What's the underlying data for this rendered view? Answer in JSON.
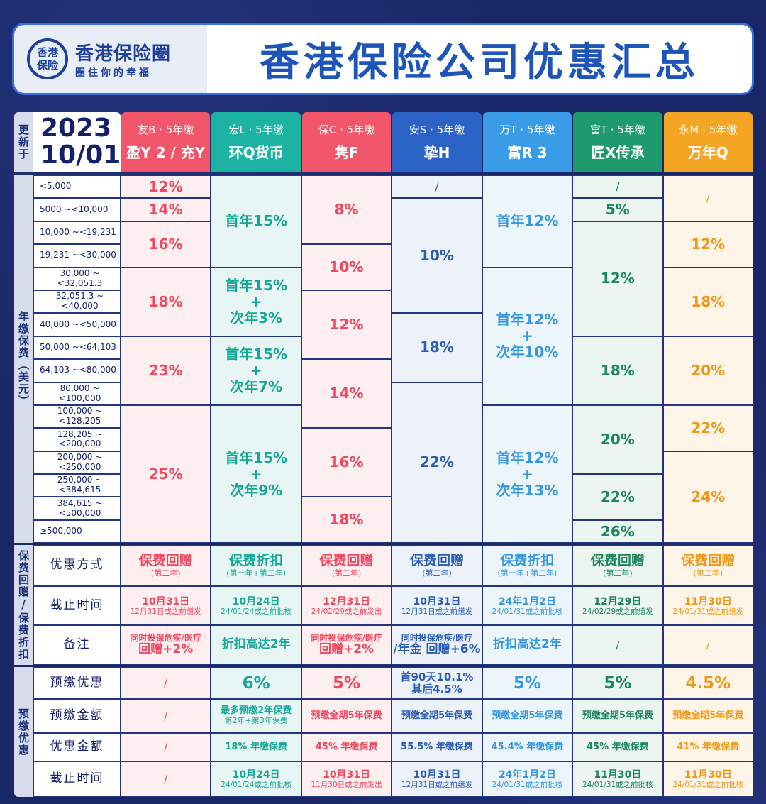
{
  "logo": {
    "seal": "香港保险",
    "name": "香港保险圈",
    "slogan": "圈住你的幸福"
  },
  "title": "香港保险公司优惠汇总",
  "updated": {
    "label": "更新于",
    "year": "2023",
    "date": "10/01"
  },
  "sections": {
    "premium": "年缴保费（美元）",
    "rebate": "保费回赠/保费折扣",
    "prepay": "预缴优惠"
  },
  "ranges": [
    "<5,000",
    "5000 ~<10,000",
    "10,000 ~<19,231",
    "19,231 ~<30,000",
    "30,000 ~<32,051.3",
    "32,051.3 ~<40,000",
    "40,000 ~<50,000",
    "50,000 ~<64,103",
    "64,103 ~<80,000",
    "80,000 ~<100,000",
    "100,000 ~<128,205",
    "128,205 ~<200,000",
    "200,000 ~<250,000",
    "250,000 ~<384,615",
    "384,615 ~<500,000",
    "≥500,000"
  ],
  "rebate_labels": [
    "优惠方式",
    "截止时间",
    "备注"
  ],
  "prepay_labels": [
    "预缴优惠",
    "预缴金额",
    "优惠金额",
    "截止时间"
  ],
  "columns": [
    {
      "company": "友B · 5年缴",
      "product": "盈Y 2 / 充Y",
      "head": "#f2566a",
      "bg": "#fdeef0",
      "fg": "#ef4760",
      "premium": [
        {
          "r": [
            0,
            0
          ],
          "t": "12%"
        },
        {
          "r": [
            1,
            1
          ],
          "t": "14%"
        },
        {
          "r": [
            2,
            3
          ],
          "t": "16%"
        },
        {
          "r": [
            4,
            6
          ],
          "t": "18%"
        },
        {
          "r": [
            7,
            9
          ],
          "t": "23%"
        },
        {
          "r": [
            10,
            15
          ],
          "t": "25%"
        }
      ],
      "method": "保费回赠",
      "method_note": "(第二年)",
      "deadline": "10月31日",
      "deadline_note": "12月31日或之前缮发",
      "remark": "同时投保危疾/医疗",
      "remark2": "回赠+2%",
      "prepay": "/",
      "prepay_amt": "/",
      "prepay_amt2": "",
      "discount": "/",
      "prepay_deadline": "/",
      "prepay_deadline_note": ""
    },
    {
      "company": "宏L · 5年缴",
      "product": "环Q货币",
      "head": "#1db3a3",
      "bg": "#e7f6f4",
      "fg": "#17a797",
      "premium": [
        {
          "r": [
            0,
            3
          ],
          "t": "首年15%"
        },
        {
          "r": [
            4,
            6
          ],
          "t": "首年15%\n+\n次年3%"
        },
        {
          "r": [
            7,
            9
          ],
          "t": "首年15%\n+\n次年7%"
        },
        {
          "r": [
            10,
            15
          ],
          "t": "首年15%\n+\n次年9%"
        }
      ],
      "method": "保费折扣",
      "method_note": "(第一年+第二年)",
      "deadline": "10月24日",
      "deadline_note": "24/01/24或之前批核",
      "remark": "",
      "remark2": "折扣高达2年",
      "prepay": "6%",
      "prepay_amt": "最多预缴2年保费",
      "prepay_amt2": "第2年+第3年保费",
      "discount": "18% 年缴保费",
      "prepay_deadline": "10月24日",
      "prepay_deadline_note": "24/01/24或之前批核"
    },
    {
      "company": "保C · 5年缴",
      "product": "隽F",
      "head": "#f2566a",
      "bg": "#fdeef0",
      "fg": "#ef4760",
      "premium": [
        {
          "r": [
            0,
            2
          ],
          "t": "8%"
        },
        {
          "r": [
            3,
            4
          ],
          "t": "10%"
        },
        {
          "r": [
            5,
            7
          ],
          "t": "12%"
        },
        {
          "r": [
            8,
            10
          ],
          "t": "14%"
        },
        {
          "r": [
            11,
            13
          ],
          "t": "16%"
        },
        {
          "r": [
            14,
            15
          ],
          "t": "18%"
        }
      ],
      "method": "保费回赠",
      "method_note": "(第二年)",
      "deadline": "12月31日",
      "deadline_note": "24/02/29或之前发出",
      "remark": "同时投保危疾/医疗",
      "remark2": "回赠+2%",
      "prepay": "5%",
      "prepay_amt": "预缴全期5年保费",
      "prepay_amt2": "",
      "discount": "45% 年缴保费",
      "prepay_deadline": "10月31日",
      "prepay_deadline_note": "11月30日或之前发出"
    },
    {
      "company": "安S · 5年缴",
      "product": "挚H",
      "head": "#2b62c6",
      "bg": "#edf2fa",
      "fg": "#2a5db5",
      "premium": [
        {
          "r": [
            0,
            0
          ],
          "t": "/"
        },
        {
          "r": [
            1,
            5
          ],
          "t": "10%"
        },
        {
          "r": [
            6,
            8
          ],
          "t": "18%"
        },
        {
          "r": [
            9,
            15
          ],
          "t": "22%"
        }
      ],
      "method": "保费回赠",
      "method_note": "(第二年)",
      "deadline": "10月31日",
      "deadline_note": "12月31日或之前缮发",
      "remark": "同时投保危疾/医疗",
      "remark2": "/年金 回赠+6%",
      "prepay": "首90天10.1%\n其后4.5%",
      "prepay_amt": "预缴全期5年保费",
      "prepay_amt2": "",
      "discount": "55.5% 年缴保费",
      "prepay_deadline": "10月31日",
      "prepay_deadline_note": "12月31日或之前缮发"
    },
    {
      "company": "万T · 5年缴",
      "product": "富R 3",
      "head": "#3a9ce6",
      "bg": "#edf5fc",
      "fg": "#3597df",
      "premium": [
        {
          "r": [
            0,
            3
          ],
          "t": "首年12%"
        },
        {
          "r": [
            4,
            9
          ],
          "t": "首年12%\n+\n次年10%"
        },
        {
          "r": [
            10,
            15
          ],
          "t": "首年12%\n+\n次年13%"
        }
      ],
      "method": "保费折扣",
      "method_note": "(第一年+第二年)",
      "deadline": "24年1月2日",
      "deadline_note": "24/01/31或之前批核",
      "remark": "",
      "remark2": "折扣高达2年",
      "prepay": "5%",
      "prepay_amt": "预缴全期5年保费",
      "prepay_amt2": "",
      "discount": "45.4% 年缴保费",
      "prepay_deadline": "24年1月2日",
      "prepay_deadline_note": "24/01/31或之前批核"
    },
    {
      "company": "富T · 5年缴",
      "product": "匠X传承",
      "head": "#1f9a6c",
      "bg": "#ecf5f0",
      "fg": "#1c875c",
      "premium": [
        {
          "r": [
            0,
            0
          ],
          "t": "/"
        },
        {
          "r": [
            1,
            1
          ],
          "t": "5%"
        },
        {
          "r": [
            2,
            6
          ],
          "t": "12%"
        },
        {
          "r": [
            7,
            9
          ],
          "t": "18%"
        },
        {
          "r": [
            10,
            12
          ],
          "t": "20%"
        },
        {
          "r": [
            13,
            14
          ],
          "t": "22%"
        },
        {
          "r": [
            15,
            15
          ],
          "t": "26%"
        }
      ],
      "method": "保费回赠",
      "method_note": "(第二年)",
      "deadline": "12月29日",
      "deadline_note": "24/02/29或之前缮发",
      "remark": "",
      "remark2": "/",
      "prepay": "5%",
      "prepay_amt": "预缴全期5年保费",
      "prepay_amt2": "",
      "discount": "45% 年缴保费",
      "prepay_deadline": "11月30日",
      "prepay_deadline_note": "24/01/31或之前批核"
    },
    {
      "company": "永M · 5年缴",
      "product": "万年Q",
      "head": "#f5a524",
      "bg": "#fef5e8",
      "fg": "#ef9818",
      "premium": [
        {
          "r": [
            0,
            1
          ],
          "t": "/"
        },
        {
          "r": [
            2,
            3
          ],
          "t": "12%"
        },
        {
          "r": [
            4,
            6
          ],
          "t": "18%"
        },
        {
          "r": [
            7,
            9
          ],
          "t": "20%"
        },
        {
          "r": [
            10,
            11
          ],
          "t": "22%"
        },
        {
          "r": [
            12,
            15
          ],
          "t": "24%"
        }
      ],
      "method": "保费回赠",
      "method_note": "(第二年)",
      "deadline": "11月30日",
      "deadline_note": "24/01/31或之前缮发",
      "remark": "",
      "remark2": "/",
      "prepay": "4.5%",
      "prepay_amt": "预缴全期5年保费",
      "prepay_amt2": "",
      "discount": "41% 年缴保费",
      "prepay_deadline": "11月30日",
      "prepay_deadline_note": "24/01/31或之前批核"
    }
  ]
}
